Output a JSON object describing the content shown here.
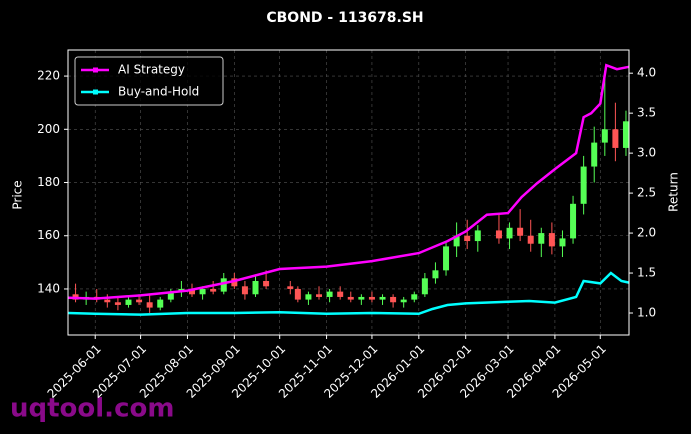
{
  "chart_data": {
    "type": "candlestick",
    "title": "CBOND - 113678.SH",
    "ylabel": "Price",
    "y2label": "Return",
    "watermark": "uqtool.com",
    "xlim": [
      "2025-05-14",
      "2026-05-20"
    ],
    "xticks": [
      "2025-06-01",
      "2025-07-01",
      "2025-08-01",
      "2025-09-01",
      "2025-10-01",
      "2025-11-01",
      "2025-12-01",
      "2026-01-01",
      "2026-02-01",
      "2026-03-01",
      "2026-04-01",
      "2026-05-01"
    ],
    "ylim": [
      122.7,
      229.8
    ],
    "yticks": [
      140,
      160,
      180,
      200,
      220
    ],
    "y2lim": [
      0.725,
      4.29
    ],
    "y2ticks": [
      {
        "value": 1,
        "label": "1.0"
      },
      {
        "value": 1.5,
        "label": "1.5"
      },
      {
        "value": 2,
        "label": "2.0"
      },
      {
        "value": 2.5,
        "label": "2.5"
      },
      {
        "value": 3,
        "label": "3.0"
      },
      {
        "value": 3.5,
        "label": "3.5"
      },
      {
        "value": 4,
        "label": "4.0"
      }
    ],
    "grid": true,
    "legend": "upper left",
    "up_color": "#55ff55",
    "down_color": "#ff5555",
    "candles": {
      "x": [
        "2025-05-19",
        "2025-05-26",
        "2025-06-02",
        "2025-06-09",
        "2025-06-16",
        "2025-06-23",
        "2025-06-30",
        "2025-07-07",
        "2025-07-14",
        "2025-07-21",
        "2025-07-28",
        "2025-08-04",
        "2025-08-11",
        "2025-08-18",
        "2025-08-25",
        "2025-09-01",
        "2025-09-08",
        "2025-09-15",
        "2025-09-22",
        "2025-10-08",
        "2025-10-13",
        "2025-10-20",
        "2025-10-27",
        "2025-11-03",
        "2025-11-10",
        "2025-11-17",
        "2025-11-24",
        "2025-12-01",
        "2025-12-08",
        "2025-12-15",
        "2025-12-22",
        "2025-12-29",
        "2026-01-05",
        "2026-01-12",
        "2026-01-19",
        "2026-01-26",
        "2026-02-02",
        "2026-02-09",
        "2026-02-23",
        "2026-03-02",
        "2026-03-09",
        "2026-03-16",
        "2026-03-23",
        "2026-03-30",
        "2026-04-06",
        "2026-04-13",
        "2026-04-20",
        "2026-04-27",
        "2026-05-04",
        "2026-05-11",
        "2026-05-18"
      ],
      "open": [
        138,
        136,
        137,
        136,
        135,
        134,
        136,
        135,
        133,
        136,
        139,
        140,
        138,
        140,
        139,
        144,
        141,
        138,
        143,
        141,
        140,
        136,
        138,
        137,
        139,
        137,
        136,
        137,
        136,
        137,
        135,
        136,
        138,
        144,
        147,
        156,
        160,
        158,
        162,
        159,
        163,
        160,
        157,
        161,
        156,
        159,
        172,
        186,
        195,
        200,
        193
      ],
      "high": [
        142,
        139,
        140,
        138,
        137,
        137,
        138,
        138,
        137,
        140,
        143,
        142,
        141,
        143,
        146,
        146,
        143,
        145,
        147,
        143,
        141,
        139,
        141,
        140,
        141,
        139,
        138,
        139,
        138,
        138,
        137,
        139,
        146,
        150,
        158,
        165,
        166,
        164,
        168,
        165,
        170,
        166,
        163,
        165,
        162,
        175,
        190,
        201,
        222,
        210,
        207
      ],
      "low": [
        135,
        134,
        135,
        133,
        132,
        133,
        134,
        131,
        132,
        135,
        137,
        137,
        136,
        138,
        138,
        140,
        136,
        137,
        140,
        138,
        135,
        134,
        136,
        135,
        136,
        135,
        134,
        135,
        134,
        133,
        133,
        135,
        137,
        142,
        145,
        152,
        155,
        154,
        157,
        155,
        158,
        154,
        152,
        153,
        152,
        157,
        168,
        180,
        190,
        188,
        190
      ],
      "close": [
        136,
        137,
        136,
        135,
        134,
        136,
        135,
        133,
        136,
        139,
        140,
        138,
        140,
        139,
        144,
        141,
        138,
        143,
        141,
        140,
        136,
        138,
        137,
        139,
        137,
        136,
        137,
        136,
        137,
        135,
        136,
        138,
        144,
        147,
        156,
        160,
        158,
        162,
        159,
        163,
        160,
        157,
        161,
        156,
        159,
        172,
        186,
        195,
        200,
        193,
        203
      ]
    },
    "series": [
      {
        "name": "AI Strategy",
        "color": "#ff00ff",
        "axis": "y2",
        "x": [
          "2025-05-14",
          "2025-06-01",
          "2025-07-01",
          "2025-08-01",
          "2025-09-01",
          "2025-10-01",
          "2025-11-01",
          "2025-12-01",
          "2026-01-01",
          "2026-01-20",
          "2026-02-01",
          "2026-02-15",
          "2026-03-01",
          "2026-03-10",
          "2026-03-20",
          "2026-04-01",
          "2026-04-15",
          "2026-04-20",
          "2026-04-25",
          "2026-05-01",
          "2026-05-05",
          "2026-05-12",
          "2026-05-20"
        ],
        "values": [
          1.19,
          1.18,
          1.22,
          1.28,
          1.4,
          1.55,
          1.58,
          1.65,
          1.75,
          1.9,
          2.02,
          2.23,
          2.25,
          2.45,
          2.62,
          2.8,
          3.0,
          3.45,
          3.5,
          3.62,
          4.1,
          4.05,
          4.08
        ]
      },
      {
        "name": "Buy-and-Hold",
        "color": "#00ffff",
        "axis": "y2",
        "x": [
          "2025-05-14",
          "2025-06-01",
          "2025-07-01",
          "2025-08-01",
          "2025-09-01",
          "2025-10-01",
          "2025-11-01",
          "2025-12-01",
          "2026-01-01",
          "2026-01-10",
          "2026-01-20",
          "2026-02-01",
          "2026-03-01",
          "2026-03-15",
          "2026-04-01",
          "2026-04-15",
          "2026-04-20",
          "2026-05-01",
          "2026-05-08",
          "2026-05-15",
          "2026-05-20"
        ],
        "values": [
          1.0,
          0.99,
          0.98,
          1.0,
          1.0,
          1.01,
          0.99,
          1.0,
          0.99,
          1.05,
          1.1,
          1.12,
          1.14,
          1.15,
          1.13,
          1.2,
          1.4,
          1.37,
          1.5,
          1.4,
          1.38
        ]
      }
    ]
  }
}
